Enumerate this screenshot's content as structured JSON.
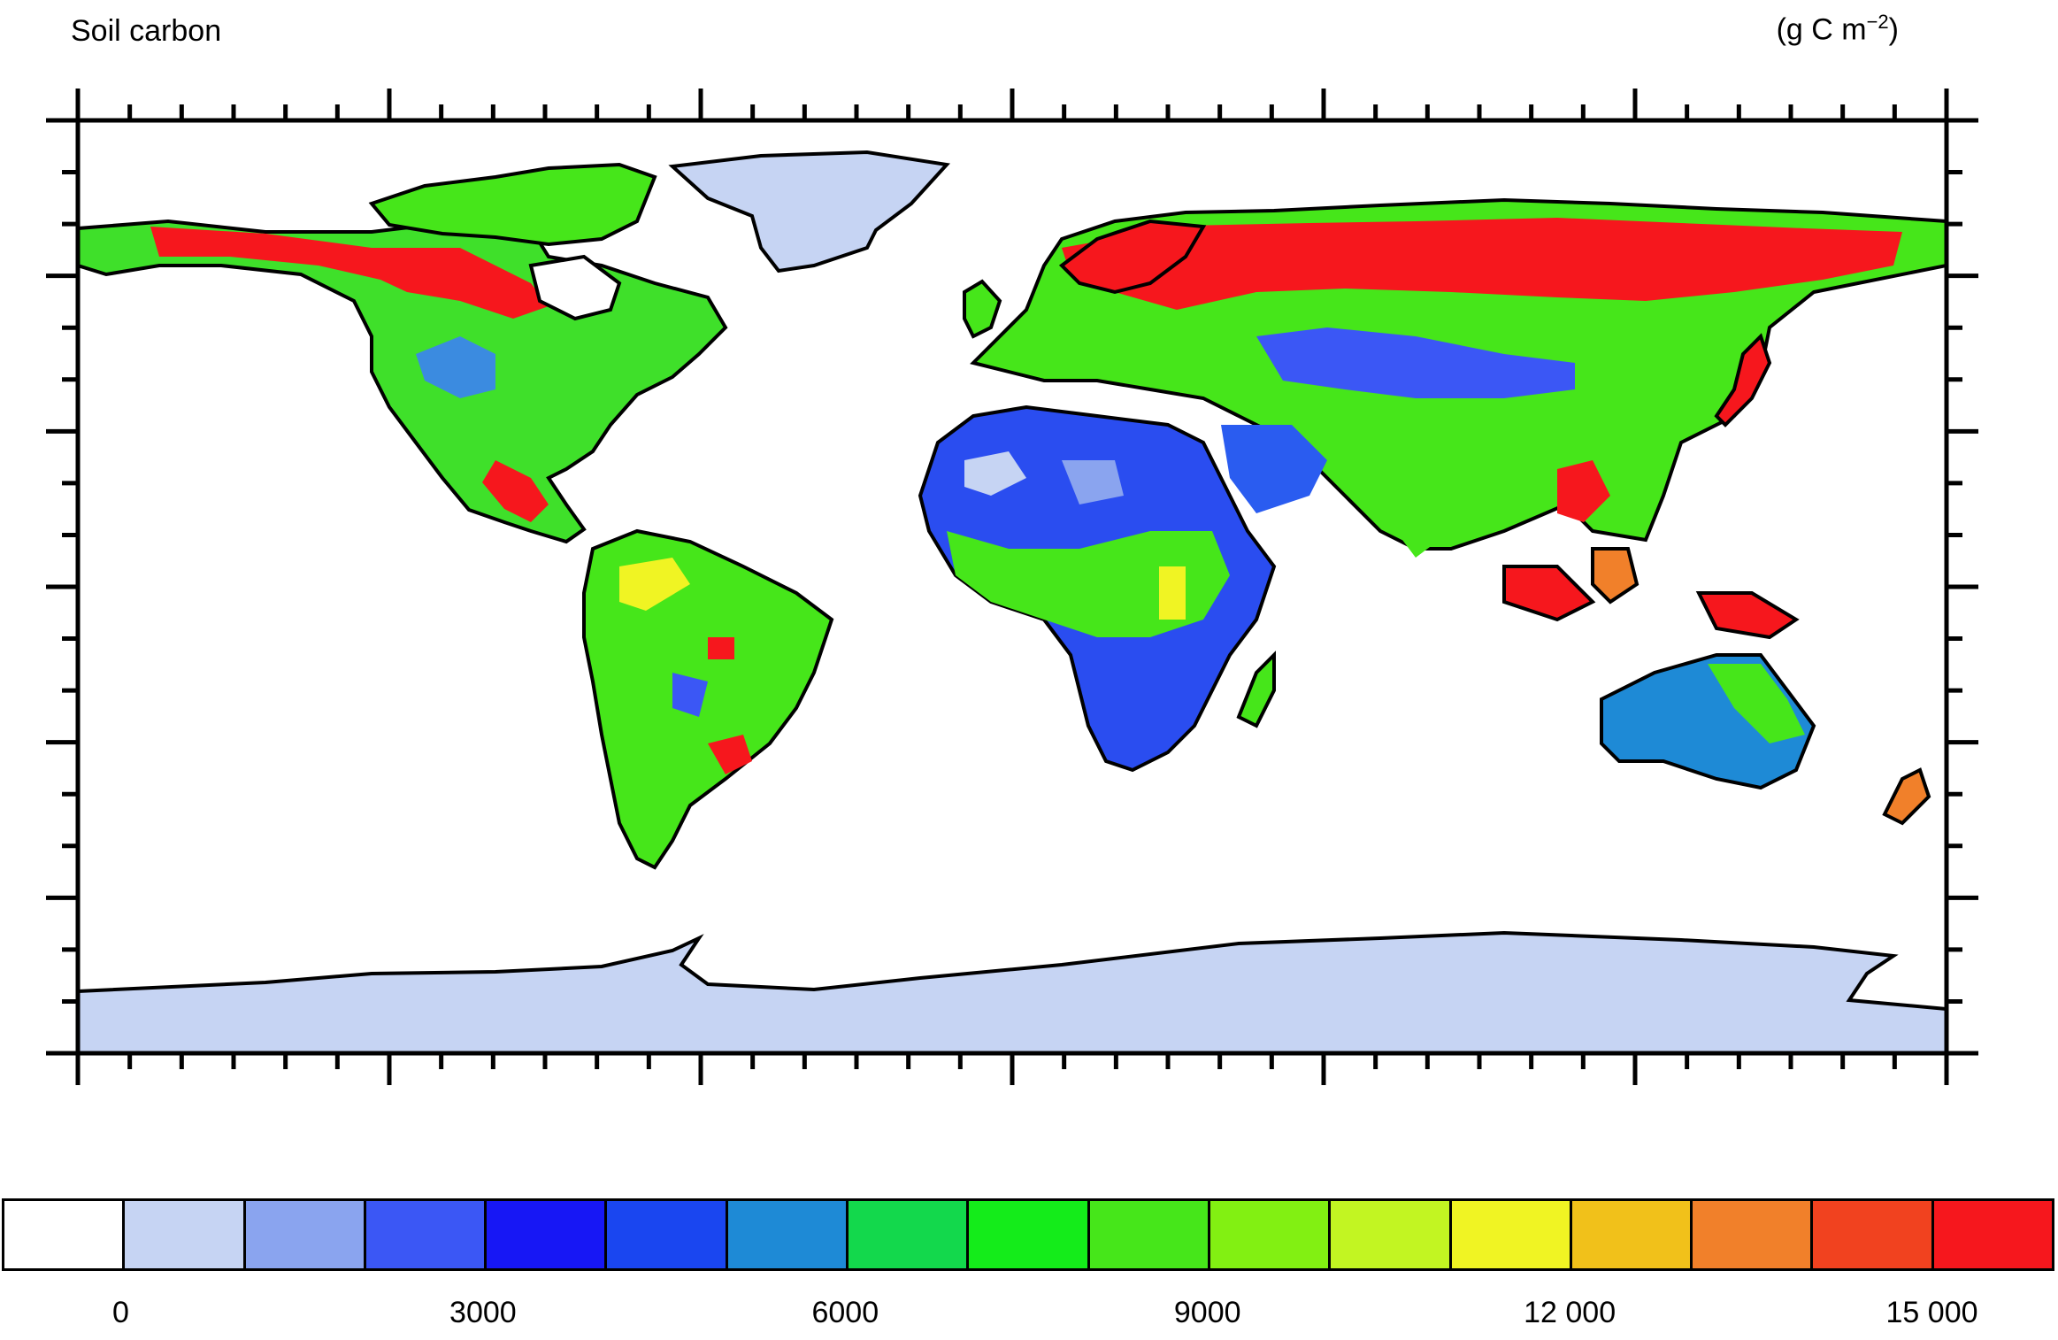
{
  "title": "Soil carbon",
  "units": {
    "base": "(g C m",
    "exp": "−2",
    "close": ")"
  },
  "map": {
    "ocean_color": "#ffffff",
    "coastline_color": "#000000",
    "ice_color": "#c6d4f3"
  },
  "colorbar": {
    "colors": [
      "#ffffff",
      "#c6d4f3",
      "#8aa4ef",
      "#3b57f5",
      "#1717f5",
      "#1a46f0",
      "#1e8ad6",
      "#13d84c",
      "#14ec1a",
      "#46e61a",
      "#82f012",
      "#c2f522",
      "#f0f423",
      "#f1c11a",
      "#f1802a",
      "#f1421f",
      "#f6171d"
    ],
    "tick_labels": [
      "0",
      "3000",
      "6000",
      "9000",
      "12 000",
      "15 000"
    ],
    "tick_positions": [
      1,
      4,
      7,
      10,
      13,
      16
    ]
  }
}
